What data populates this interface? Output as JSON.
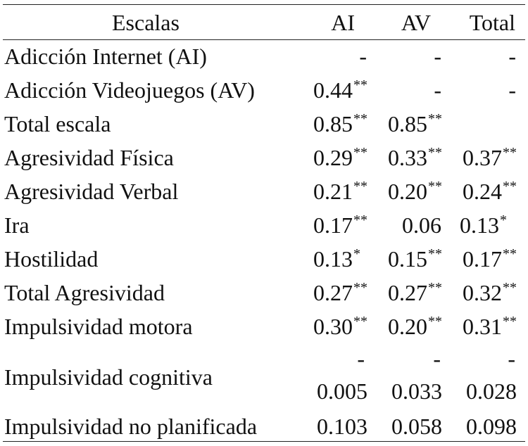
{
  "header": {
    "label": "Escalas",
    "ai": "AI",
    "av": "AV",
    "total": "Total"
  },
  "rows": [
    {
      "label": "Adicción  Internet (AI)",
      "ai": "-",
      "ai_sup": "",
      "av": "-",
      "av_sup": "",
      "total": "-",
      "total_sup": ""
    },
    {
      "label": "Adicción Videojuegos (AV)",
      "ai": "0.44",
      "ai_sup": "**",
      "av": "-",
      "av_sup": "",
      "total": "-",
      "total_sup": ""
    },
    {
      "label": "Total escala",
      "ai": "0.85",
      "ai_sup": "**",
      "av": "0.85",
      "av_sup": "**",
      "total": "",
      "total_sup": ""
    },
    {
      "label": "Agresividad Física",
      "ai": "0.29",
      "ai_sup": "**",
      "av": "0.33",
      "av_sup": "**",
      "total": "0.37",
      "total_sup": "**"
    },
    {
      "label": "Agresividad Verbal",
      "ai": "0.21",
      "ai_sup": "**",
      "av": "0.20",
      "av_sup": "**",
      "total": "0.24",
      "total_sup": "**"
    },
    {
      "label": "Ira",
      "ai": "0.17",
      "ai_sup": "**",
      "av": "0.06",
      "av_sup": "",
      "total": "0.13",
      "total_sup": "*"
    },
    {
      "label": "Hostilidad",
      "ai": "0.13",
      "ai_sup": "*",
      "av": "0.15",
      "av_sup": "**",
      "total": "0.17",
      "total_sup": "**"
    },
    {
      "label": "Total Agresividad",
      "ai": "0.27",
      "ai_sup": "**",
      "av": "0.27",
      "av_sup": "**",
      "total": "0.32",
      "total_sup": "**"
    },
    {
      "label": "Impulsividad motora",
      "ai": "0.30",
      "ai_sup": "**",
      "av": "0.20",
      "av_sup": "**",
      "total": "0.31",
      "total_sup": "**"
    }
  ],
  "cognitive_row": {
    "label": "Impulsividad cognitiva",
    "ai_sign": "-",
    "ai": "0.005",
    "av_sign": "-",
    "av": "0.033",
    "total_sign": "-",
    "total": "0.028"
  },
  "last_row": {
    "label": "Impulsividad no planificada",
    "ai": "0.103",
    "av": "0.058",
    "total": "0.098"
  }
}
